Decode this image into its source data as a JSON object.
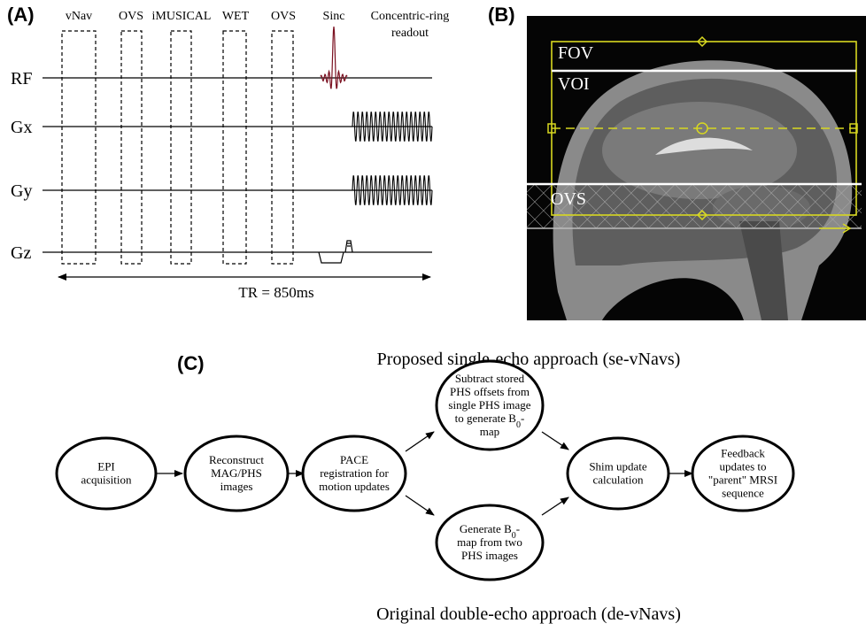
{
  "panel_a": {
    "label": "(A)",
    "blocks": [
      "vNav",
      "OVS",
      "iMUSICAL",
      "WET",
      "OVS",
      "Sinc"
    ],
    "readout": [
      "Concentric-ring",
      "readout"
    ],
    "channels": [
      "RF",
      "Gx",
      "Gy",
      "Gz"
    ],
    "tr": "TR = 850ms"
  },
  "panel_b": {
    "label": "(B)",
    "regions": [
      "FOV",
      "VOI",
      "OVS"
    ]
  },
  "panel_c": {
    "label": "(C)",
    "top_caption": "Proposed single-echo approach (se-vNavs)",
    "bottom_caption": "Original double-echo approach (de-vNavs)",
    "nodes": [
      {
        "lines": [
          "EPI",
          "acquisition"
        ]
      },
      {
        "lines": [
          "Reconstruct",
          "MAG/PHS",
          "images"
        ]
      },
      {
        "lines": [
          "PACE",
          "registration for",
          "motion updates"
        ]
      },
      {
        "lines": [
          "Subtract stored",
          "PHS offsets from",
          "single PHS image",
          [
            "to generate B",
            "0",
            "-"
          ],
          "map"
        ]
      },
      {
        "lines": [
          [
            "Generate B",
            "0",
            "-"
          ],
          "map from two",
          "PHS images"
        ]
      },
      {
        "lines": [
          "Shim update",
          "calculation"
        ]
      },
      {
        "lines": [
          "Feedback",
          "updates to",
          "\"parent\"  MRSI",
          "sequence"
        ]
      }
    ]
  }
}
